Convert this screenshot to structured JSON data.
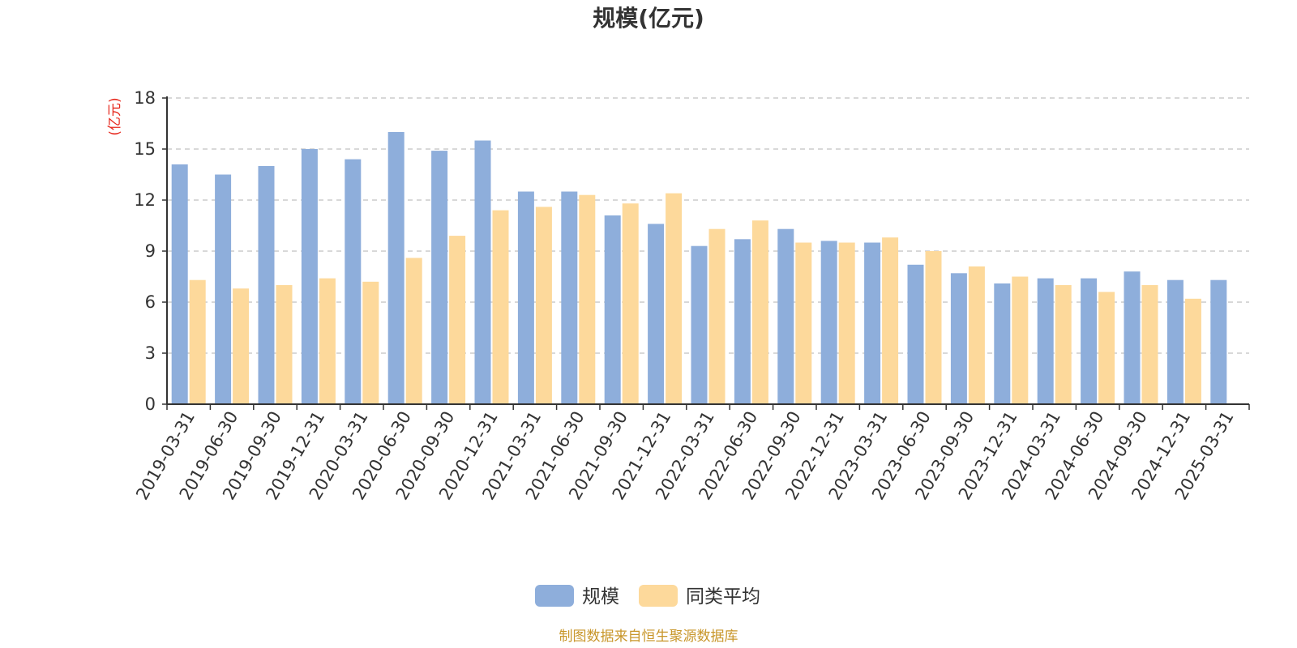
{
  "chart_data": {
    "type": "bar",
    "title": "规模(亿元)",
    "y_unit_label": "(亿元)",
    "ylim": [
      0,
      18
    ],
    "yticks": [
      "0",
      "3",
      "6",
      "9",
      "12",
      "15",
      "18"
    ],
    "grid": true,
    "legend_position": "bottom-center",
    "categories": [
      "2019-03-31",
      "2019-06-30",
      "2019-09-30",
      "2019-12-31",
      "2020-03-31",
      "2020-06-30",
      "2020-09-30",
      "2020-12-31",
      "2021-03-31",
      "2021-06-30",
      "2021-09-30",
      "2021-12-31",
      "2022-03-31",
      "2022-06-30",
      "2022-09-30",
      "2022-12-31",
      "2023-03-31",
      "2023-06-30",
      "2023-09-30",
      "2023-12-31",
      "2024-03-31",
      "2024-06-30",
      "2024-09-30",
      "2024-12-31",
      "2025-03-31"
    ],
    "series": [
      {
        "name": "规模",
        "color": "#8eaedb",
        "values": [
          14.1,
          13.5,
          14.0,
          15.0,
          14.4,
          16.0,
          14.9,
          15.5,
          12.5,
          12.5,
          11.1,
          10.6,
          9.3,
          9.7,
          10.3,
          9.6,
          9.5,
          8.2,
          7.7,
          7.1,
          7.4,
          7.4,
          7.8,
          7.3,
          7.3
        ]
      },
      {
        "name": "同类平均",
        "color": "#fdd99b",
        "values": [
          7.3,
          6.8,
          7.0,
          7.4,
          7.2,
          8.6,
          9.9,
          11.4,
          11.6,
          12.3,
          11.8,
          12.4,
          10.3,
          10.8,
          9.5,
          9.5,
          9.8,
          9.0,
          8.1,
          7.5,
          7.0,
          6.6,
          7.0,
          6.2,
          null
        ]
      }
    ]
  },
  "source_note": "制图数据来自恒生聚源数据库"
}
